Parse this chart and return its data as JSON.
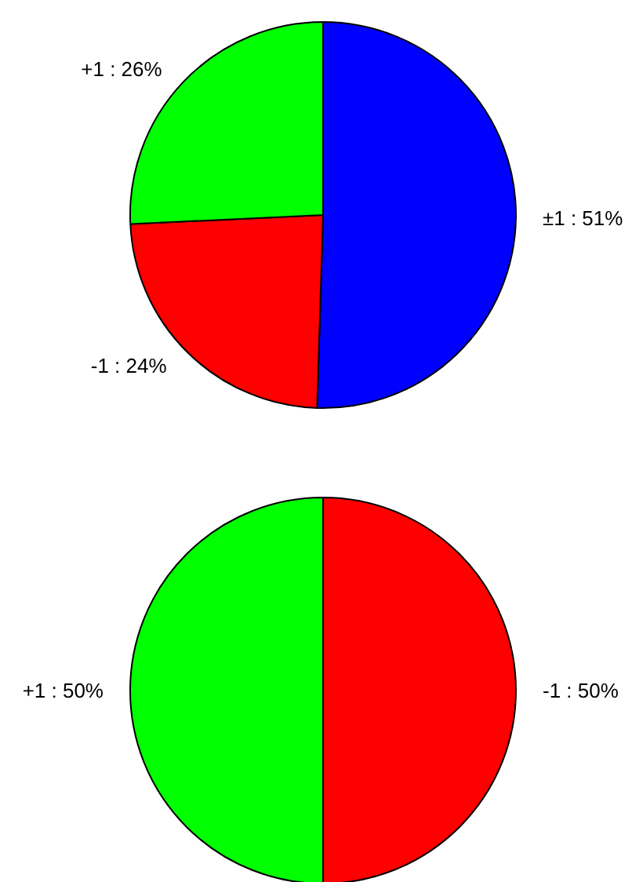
{
  "chart_data": [
    {
      "type": "pie",
      "categories": [
        "±1 : 51%",
        "-1 : 24%",
        "+1 : 26%"
      ],
      "values": [
        51,
        24,
        26
      ],
      "colors": [
        "#0000ff",
        "#ff0000",
        "#00ff00"
      ],
      "legend": false
    },
    {
      "type": "pie",
      "categories": [
        "-1 : 50%",
        "+1 : 50%"
      ],
      "values": [
        50,
        50
      ],
      "colors": [
        "#ff0000",
        "#00ff00"
      ],
      "legend": false
    }
  ]
}
